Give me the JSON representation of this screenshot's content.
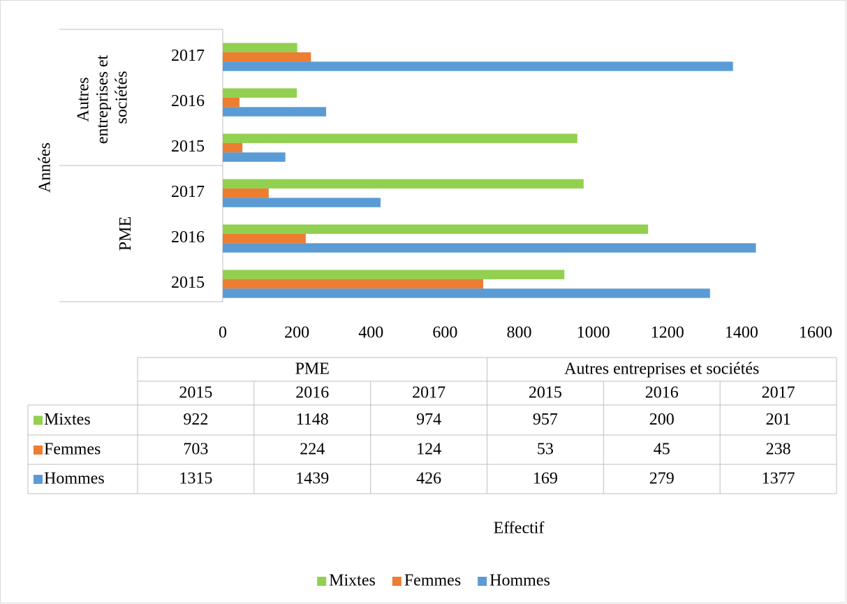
{
  "chart_data": {
    "type": "bar",
    "orientation": "horizontal",
    "xlabel": "Effectif",
    "ylabel": "Années",
    "category_groups": [
      {
        "name": "PME",
        "categories": [
          "2015",
          "2016",
          "2017"
        ]
      },
      {
        "name": "Autres entreprises et sociétés",
        "categories": [
          "2015",
          "2016",
          "2017"
        ]
      }
    ],
    "series": [
      {
        "name": "Mixtes",
        "color": "#92d050",
        "values": [
          922,
          1148,
          974,
          957,
          200,
          201
        ]
      },
      {
        "name": "Femmes",
        "color": "#ed7d31",
        "values": [
          703,
          224,
          124,
          53,
          45,
          238
        ]
      },
      {
        "name": "Hommes",
        "color": "#5b9bd5",
        "values": [
          1315,
          1439,
          426,
          169,
          279,
          1377
        ]
      }
    ],
    "xlim": [
      0,
      1600
    ],
    "xticks": [
      0,
      200,
      400,
      600,
      800,
      1000,
      1200,
      1400,
      1600
    ],
    "grid": false,
    "data_table": true,
    "legend": "bottom"
  }
}
